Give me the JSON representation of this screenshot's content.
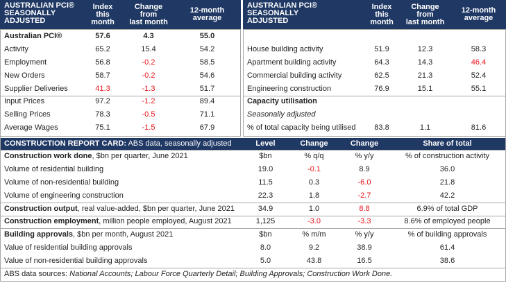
{
  "pci_left": {
    "header": [
      "AUSTRALIAN PCI®\nSEASONALLY\nADJUSTED",
      "Index\nthis\nmonth",
      "Change\nfrom\nlast month",
      "12-month\naverage"
    ],
    "rows": [
      {
        "bold": true,
        "cells": [
          "Australian PCI®",
          "57.6",
          "4.3",
          "55.0"
        ]
      },
      {
        "cells": [
          "Activity",
          "65.2",
          "15.4",
          "54.2"
        ]
      },
      {
        "cells": [
          "Employment",
          "56.8",
          {
            "text": "-0.2",
            "color": "#e8141b"
          },
          "58.5"
        ]
      },
      {
        "cells": [
          "New Orders",
          "58.7",
          {
            "text": "-0.2",
            "color": "#e8141b"
          },
          "54.6"
        ]
      },
      {
        "cells": [
          "Supplier Deliveries",
          {
            "text": "41.3",
            "color": "#e8141b"
          },
          {
            "text": "-1.3",
            "color": "#e8141b"
          },
          "51.7"
        ]
      },
      {
        "cells": [
          "Input Prices",
          "97.2",
          {
            "text": "-1.2",
            "color": "#e8141b"
          },
          "89.4"
        ]
      },
      {
        "cells": [
          "Selling Prices",
          "78.3",
          {
            "text": "-0.5",
            "color": "#e8141b"
          },
          "71.1"
        ]
      },
      {
        "cells": [
          "Average Wages",
          "75.1",
          {
            "text": "-1.5",
            "color": "#e8141b"
          },
          "67.9"
        ]
      }
    ]
  },
  "pci_right": {
    "header": [
      "AUSTRALIAN PCI®\nSEASONALLY\nADJUSTED",
      "Index\nthis\nmonth",
      "Change\nfrom\nlast month",
      "12-month\naverage"
    ],
    "rows": [
      {
        "cells": [
          "House building activity",
          "51.9",
          "12.3",
          "58.3"
        ]
      },
      {
        "cells": [
          "Apartment building activity",
          "64.3",
          "14.3",
          {
            "text": "46.4",
            "color": "#e8141b"
          }
        ]
      },
      {
        "cells": [
          "Commercial building activity",
          "62.5",
          "21.3",
          "52.4"
        ]
      },
      {
        "cells": [
          "Engineering construction",
          "76.9",
          "15.1",
          "55.1"
        ]
      },
      {
        "bold": true,
        "cells": [
          "Capacity utilisation"
        ]
      },
      {
        "italic": true,
        "cells": [
          "Seasonally adjusted"
        ]
      },
      {
        "cells": [
          "% of total capacity being utilised",
          "83.8",
          "1.1",
          "81.6"
        ]
      }
    ]
  },
  "report_card": {
    "header": [
      "CONSTRUCTION REPORT CARD:",
      " ABS data, seasonally adjusted",
      "Level",
      "Change",
      "Change",
      "Share of total"
    ],
    "rows": [
      {
        "label_bold": "Construction work done",
        "label": ", $bn per quarter, June 2021",
        "cells": [
          "$bn",
          "% q/q",
          "% y/y",
          "% of construction activity"
        ]
      },
      {
        "label": "Volume of residential building",
        "cells": [
          "19.0",
          {
            "text": "-0.1",
            "color": "#e8141b"
          },
          "8.9",
          "36.0"
        ]
      },
      {
        "label": "Volume of non-residential building",
        "cells": [
          "11.5",
          "0.3",
          {
            "text": "-6.0",
            "color": "#e8141b"
          },
          "21.8"
        ]
      },
      {
        "label": "Volume of engineering construction",
        "cells": [
          "22.3",
          "1.8",
          {
            "text": "-2.7",
            "color": "#e8141b"
          },
          "42.2"
        ]
      },
      {
        "label_bold": "Construction output",
        "label": ", real value-added, $bn per quarter, June 2021",
        "cells": [
          "34.9",
          "1.0",
          {
            "text": "8.8",
            "color": "#e8141b"
          },
          "6.9% of total GDP"
        ]
      },
      {
        "label_bold": "Construction employment",
        "label": ", million people employed, August 2021",
        "cells": [
          "1,125",
          {
            "text": "-3.0",
            "color": "#e8141b"
          },
          {
            "text": "-3.3",
            "color": "#e8141b"
          },
          "8.6% of employed people"
        ]
      },
      {
        "label_bold": "Building approvals",
        "label": ", $bn per month, August 2021",
        "cells": [
          "$bn",
          "% m/m",
          "% y/y",
          "% of building approvals"
        ]
      },
      {
        "label": "Value of residential building approvals",
        "cells": [
          "8.0",
          "9.2",
          "38.9",
          "61.4"
        ]
      },
      {
        "label": "Value of non-residential building approvals",
        "cells": [
          "5.0",
          "43.8",
          "16.5",
          "38.6"
        ]
      }
    ]
  },
  "footer": {
    "parts": [
      {
        "text": "ABS data sources: "
      },
      {
        "text": "National Accounts; Labour Force Quarterly Detail; Building Approvals; Construction Work Done.",
        "italic": true
      }
    ]
  }
}
